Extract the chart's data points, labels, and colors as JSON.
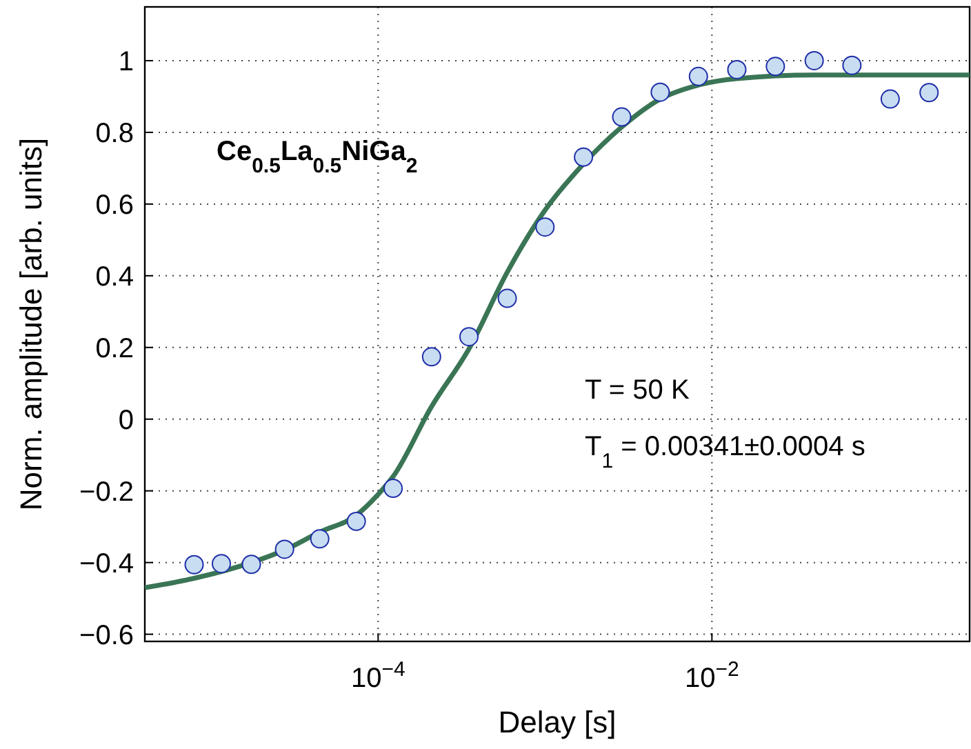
{
  "chart_data": {
    "type": "scatter",
    "xlabel": "Delay [s]",
    "ylabel": "Norm. amplitude [arb. units]",
    "log": "x",
    "grid": true,
    "xlim": [
      4e-06,
      0.35
    ],
    "ylim": [
      -0.62,
      1.15
    ],
    "xticks": [
      {
        "value": 0.0001,
        "label": "10$^{−4}$"
      },
      {
        "value": 0.01,
        "label": "10$^{−2}$"
      }
    ],
    "yticks": [
      {
        "value": -0.6,
        "label": "−0.6"
      },
      {
        "value": -0.4,
        "label": "−0.4"
      },
      {
        "value": -0.2,
        "label": "−0.2"
      },
      0,
      0.2,
      0.4,
      0.6,
      0.8,
      1
    ],
    "annotations": [
      "Ce$_{0.5}$La$_{0.5}$NiGa$_{2}$",
      "T = 50 K",
      "T$_{1}$ = 0.00341±0.0004 s"
    ],
    "series": [
      {
        "marker": "circle",
        "color": "#c8dcf2",
        "x": [
          7.9e-06,
          1.15e-05,
          1.74e-05,
          2.75e-05,
          4.47e-05,
          7.4e-05,
          0.000123,
          0.000209,
          0.00035,
          0.000594,
          0.001,
          0.0017,
          0.00288,
          0.0049,
          0.0083,
          0.0141,
          0.024,
          0.041,
          0.069,
          0.117,
          0.2
        ],
        "values": [
          -0.406,
          -0.403,
          -0.405,
          -0.363,
          -0.334,
          -0.285,
          -0.193,
          0.174,
          0.23,
          0.337,
          0.536,
          0.731,
          0.843,
          0.912,
          0.956,
          0.975,
          0.984,
          1.0,
          0.987,
          0.893,
          0.911
        ]
      },
      {
        "type": "line",
        "color": "#3a7555",
        "x": [
          4e-06,
          7.9e-06,
          1.74e-05,
          2.75e-05,
          4.47e-05,
          7.4e-05,
          0.0001,
          0.000123,
          0.000209,
          0.00035,
          0.000594,
          0.001,
          0.0017,
          0.00288,
          0.0049,
          0.0083,
          0.0141,
          0.041,
          0.35
        ],
        "values": [
          -0.47,
          -0.444,
          -0.4,
          -0.365,
          -0.315,
          -0.268,
          -0.21,
          -0.16,
          0.035,
          0.196,
          0.41,
          0.583,
          0.712,
          0.815,
          0.893,
          0.932,
          0.95,
          0.96,
          0.96
        ]
      }
    ]
  }
}
